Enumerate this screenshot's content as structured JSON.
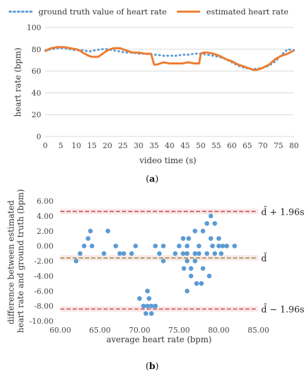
{
  "figure": {
    "panel_a_label": "a",
    "panel_b_label": "b"
  },
  "chart_data": [
    {
      "type": "line",
      "legend": {
        "placement": "top",
        "entries": [
          "ground truth value of heart rate",
          "estimated heart rate"
        ]
      },
      "xlabel": "video time (s)",
      "ylabel": "heart rate (bpm)",
      "xlim": [
        0,
        80
      ],
      "ylim": [
        0,
        100
      ],
      "xticks": [
        0,
        5,
        10,
        15,
        20,
        25,
        30,
        35,
        40,
        45,
        50,
        55,
        60,
        65,
        70,
        75,
        80
      ],
      "yticks": [
        0,
        20,
        40,
        60,
        80,
        100
      ],
      "grid": "horizontal",
      "series": [
        {
          "name": "ground truth value of heart rate",
          "style": "dotted",
          "color": "#5b9bd5",
          "x": [
            0,
            2,
            4,
            6,
            8,
            10,
            12,
            14,
            16,
            18,
            20,
            22,
            24,
            26,
            28,
            30,
            32,
            34,
            36,
            38,
            40,
            42,
            44,
            46,
            48,
            50,
            52,
            54,
            56,
            58,
            60,
            62,
            64,
            66,
            68,
            70,
            72,
            74,
            76,
            78,
            80
          ],
          "y": [
            79,
            80,
            81,
            81,
            80,
            79,
            79,
            78,
            79,
            80,
            80,
            79,
            78,
            77,
            77,
            76,
            76,
            75,
            75,
            74,
            74,
            74,
            75,
            75,
            76,
            76,
            75,
            74,
            73,
            71,
            68,
            65,
            63,
            62,
            62,
            63,
            65,
            69,
            75,
            80,
            79
          ]
        },
        {
          "name": "estimated heart rate",
          "style": "solid",
          "color": "#ed7d31",
          "x": [
            0,
            1,
            2,
            4,
            6,
            8,
            10,
            11,
            12,
            14,
            15,
            16,
            17,
            18,
            20,
            22,
            24,
            26,
            28,
            30,
            32,
            34,
            35,
            36,
            37,
            38,
            40,
            42,
            44,
            46,
            48,
            49.5,
            50,
            51,
            52,
            54,
            56,
            58,
            60,
            62,
            64,
            66,
            67,
            68,
            70,
            72,
            74,
            76,
            78,
            80
          ],
          "y": [
            78,
            80,
            81,
            82,
            82,
            81,
            80,
            79,
            77,
            74,
            73,
            73,
            73,
            75,
            79,
            81,
            81,
            79,
            77,
            77,
            76,
            76,
            66,
            66,
            67,
            68,
            67,
            67,
            67,
            68,
            67,
            67,
            76,
            77,
            77,
            76,
            74,
            71,
            69,
            66,
            64,
            62,
            61,
            61,
            63,
            66,
            71,
            74,
            76,
            79
          ]
        }
      ]
    },
    {
      "type": "scatter",
      "xlabel": "average heart rate (bpm)",
      "ylabel": "difference between estimated heart rate and ground truth (bpm)",
      "ylabel_lines": [
        "difference between estimated",
        "heart rate and ground truth (bpm)"
      ],
      "xlim": [
        60,
        85
      ],
      "ylim": [
        -10,
        6
      ],
      "xticks": [
        "60.00",
        "65.00",
        "70.00",
        "75.00",
        "80.00",
        "85.00"
      ],
      "yticks": [
        "6.00",
        "4.00",
        "2.00",
        "0.00",
        "-2.00",
        "-4.00",
        "-6.00",
        "-8.00",
        "-10.00"
      ],
      "grid": "none",
      "reference_lines": [
        {
          "label_main": "d̄",
          "label_suffix": " + 1.96s",
          "y": 4.6,
          "color": "#c0504d"
        },
        {
          "label_main": "d̄",
          "label_suffix": "",
          "y": -1.6,
          "color": "#8b8b3a"
        },
        {
          "label_main": "d̄",
          "label_suffix": " − 1.96s",
          "y": -8.4,
          "color": "#c0504d"
        }
      ],
      "points": {
        "color": "#5b9bd5",
        "x": [
          62,
          62.5,
          63,
          63.5,
          63.8,
          64,
          66,
          65.5,
          67,
          67.5,
          68,
          69,
          69.5,
          70,
          70.5,
          70.8,
          71,
          71,
          71.2,
          71.5,
          71.5,
          72,
          72,
          72.5,
          73,
          73,
          74.5,
          75,
          75.5,
          75.5,
          75.6,
          76,
          76,
          76,
          76,
          76.2,
          76.5,
          76.5,
          77,
          77,
          77,
          77.2,
          77.5,
          77.5,
          77.8,
          78,
          78,
          78.5,
          78.5,
          79,
          79,
          79.2,
          79.5,
          79.5,
          80,
          80,
          80.5,
          81,
          82,
          80.3,
          78.8
        ],
        "y": [
          -2,
          -1,
          0,
          1,
          2,
          0,
          2,
          -1,
          0,
          -1,
          -1,
          -1,
          0,
          -7,
          -8,
          -9,
          -6,
          -8,
          -7,
          -9,
          -8,
          0,
          -8,
          -1,
          -2,
          0,
          -1,
          0,
          1,
          -1,
          -3,
          0,
          -1,
          -2,
          -6,
          1,
          -4,
          -3,
          -1,
          -2,
          2,
          -5,
          -1,
          0,
          -5,
          2,
          -3,
          -1,
          3,
          4,
          1,
          0,
          3,
          -1,
          0,
          1,
          0,
          0,
          0,
          -1,
          -4
        ]
      }
    }
  ]
}
